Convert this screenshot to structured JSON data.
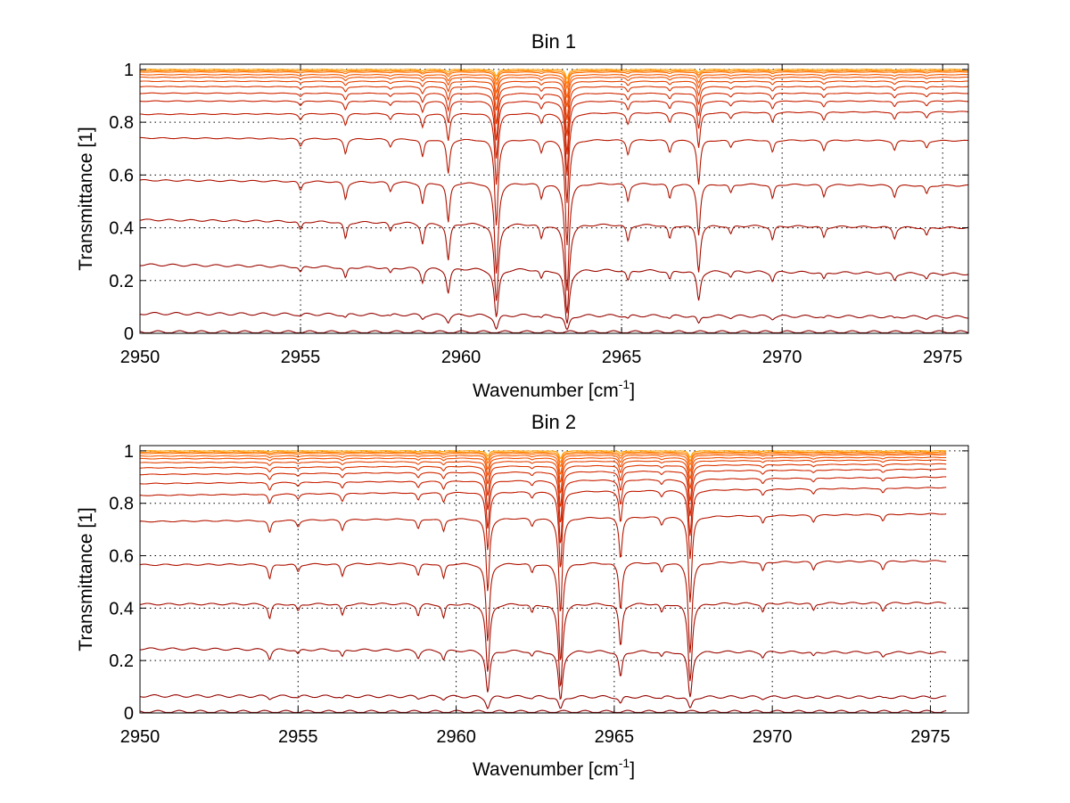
{
  "chart_data": [
    {
      "type": "line",
      "title": "Bin 1",
      "xlabel": "Wavenumber [cm",
      "xlabel_sup": "-1",
      "xlabel_close": "]",
      "ylabel": "Transmittance [1]",
      "xlim": [
        2950,
        2975.8
      ],
      "ylim": [
        0,
        1.02
      ],
      "xticks": [
        2950,
        2955,
        2960,
        2965,
        2970,
        2975
      ],
      "xtick_labels": [
        "2950",
        "2955",
        "2960",
        "2965",
        "2970",
        "2975"
      ],
      "yticks": [
        0,
        0.2,
        0.4,
        0.6,
        0.8,
        1
      ],
      "ytick_labels": [
        "0",
        "0.2",
        "0.4",
        "0.6",
        "0.8",
        "1"
      ],
      "grid": true,
      "baselines": [
        0.005,
        0.075,
        0.26,
        0.43,
        0.58,
        0.74,
        0.83,
        0.88,
        0.91,
        0.935,
        0.955,
        0.97,
        0.98,
        0.99,
        0.995,
        1.0
      ],
      "end_values": [
        0.005,
        0.062,
        0.225,
        0.4,
        0.56,
        0.73,
        0.84,
        0.88,
        0.91,
        0.935,
        0.955,
        0.97,
        0.98,
        0.99,
        0.995,
        1.0
      ],
      "absorption_lines": [
        {
          "x": 2961.1,
          "depth": 0.9
        },
        {
          "x": 2963.3,
          "depth": 1.2
        },
        {
          "x": 2967.4,
          "depth": 0.4
        },
        {
          "x": 2959.6,
          "depth": 0.3
        },
        {
          "x": 2956.4,
          "depth": 0.12
        },
        {
          "x": 2958.8,
          "depth": 0.15
        },
        {
          "x": 2962.5,
          "depth": 0.1
        },
        {
          "x": 2965.2,
          "depth": 0.12
        },
        {
          "x": 2966.5,
          "depth": 0.1
        },
        {
          "x": 2969.7,
          "depth": 0.1
        },
        {
          "x": 2971.3,
          "depth": 0.08
        },
        {
          "x": 2973.5,
          "depth": 0.08
        },
        {
          "x": 2955.0,
          "depth": 0.06
        },
        {
          "x": 2957.8,
          "depth": 0.06
        },
        {
          "x": 2968.4,
          "depth": 0.06
        },
        {
          "x": 2974.5,
          "depth": 0.06
        }
      ],
      "x_data_end": 2975.8
    },
    {
      "type": "line",
      "title": "Bin 2",
      "xlabel": "Wavenumber [cm",
      "xlabel_sup": "-1",
      "xlabel_close": "]",
      "ylabel": "Transmittance [1]",
      "xlim": [
        2950,
        2976.2
      ],
      "ylim": [
        0,
        1.02
      ],
      "xticks": [
        2950,
        2955,
        2960,
        2965,
        2970,
        2975
      ],
      "xtick_labels": [
        "2950",
        "2955",
        "2960",
        "2965",
        "2970",
        "2975"
      ],
      "yticks": [
        0,
        0.2,
        0.4,
        0.6,
        0.8,
        1
      ],
      "ytick_labels": [
        "0",
        "0.2",
        "0.4",
        "0.6",
        "0.8",
        "1"
      ],
      "grid": true,
      "baselines": [
        0.005,
        0.065,
        0.245,
        0.415,
        0.565,
        0.73,
        0.83,
        0.875,
        0.91,
        0.935,
        0.955,
        0.97,
        0.98,
        0.99,
        0.995,
        1.0
      ],
      "end_values": [
        0.005,
        0.06,
        0.23,
        0.42,
        0.58,
        0.76,
        0.86,
        0.9,
        0.93,
        0.95,
        0.965,
        0.975,
        0.985,
        0.99,
        0.995,
        1.0
      ],
      "absorption_lines": [
        {
          "x": 2961.0,
          "depth": 0.7
        },
        {
          "x": 2963.3,
          "depth": 1.0
        },
        {
          "x": 2965.2,
          "depth": 0.35
        },
        {
          "x": 2967.4,
          "depth": 0.85
        },
        {
          "x": 2959.6,
          "depth": 0.1
        },
        {
          "x": 2954.1,
          "depth": 0.1
        },
        {
          "x": 2956.4,
          "depth": 0.08
        },
        {
          "x": 2958.8,
          "depth": 0.08
        },
        {
          "x": 2962.4,
          "depth": 0.06
        },
        {
          "x": 2966.5,
          "depth": 0.06
        },
        {
          "x": 2969.7,
          "depth": 0.06
        },
        {
          "x": 2971.3,
          "depth": 0.05
        },
        {
          "x": 2973.5,
          "depth": 0.05
        },
        {
          "x": 2955.0,
          "depth": 0.05
        }
      ],
      "x_data_end": 2975.5
    }
  ],
  "colors": {
    "dark": "#8b0000",
    "mid": "#cc2200",
    "light": "#ff6600",
    "top": "#ffa000",
    "grid": "#000000",
    "axis": "#000000"
  }
}
